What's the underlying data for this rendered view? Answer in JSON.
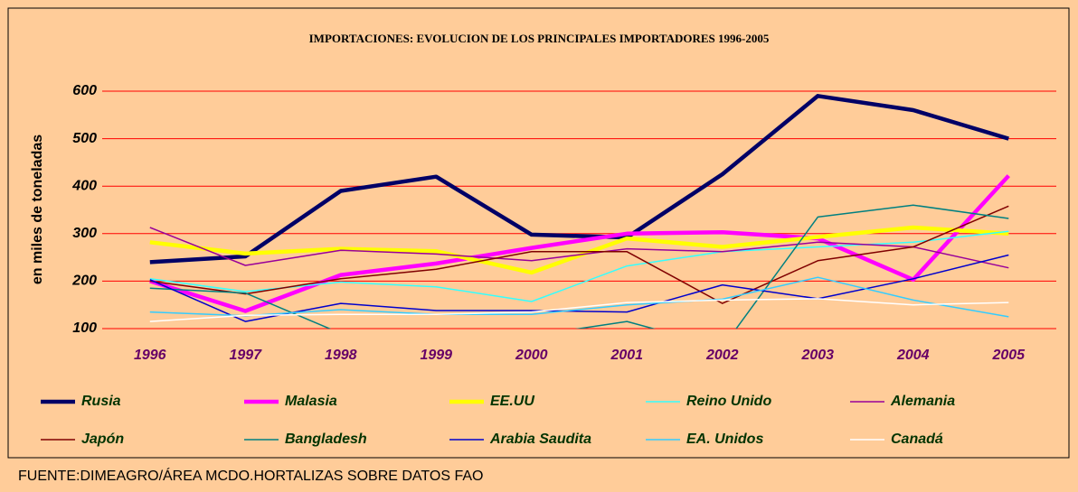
{
  "chart_data": {
    "type": "line",
    "title": "IMPORTACIONES: EVOLUCION DE LOS PRINCIPALES IMPORTADORES 1996-2005",
    "y_label": "en miles de toneladas",
    "categories": [
      "1996",
      "1997",
      "1998",
      "1999",
      "2000",
      "2001",
      "2002",
      "2003",
      "2004",
      "2005"
    ],
    "ylim": [
      100,
      600
    ],
    "yticks": [
      100,
      200,
      300,
      400,
      500,
      600
    ],
    "grid": true,
    "series": [
      {
        "name": "Rusia",
        "color": "#000066",
        "values": [
          240,
          252,
          390,
          420,
          298,
          292,
          425,
          590,
          560,
          500
        ]
      },
      {
        "name": "Malasia",
        "color": "#ff00ff",
        "values": [
          200,
          137,
          213,
          237,
          270,
          300,
          303,
          290,
          203,
          422
        ]
      },
      {
        "name": "EE.UU",
        "color": "#ffff00",
        "values": [
          282,
          258,
          268,
          263,
          218,
          290,
          272,
          293,
          313,
          300
        ]
      },
      {
        "name": "Reino Unido",
        "color": "#33ffff",
        "values": [
          205,
          178,
          198,
          188,
          157,
          232,
          262,
          272,
          282,
          305
        ]
      },
      {
        "name": "Alemania",
        "color": "#990099",
        "values": [
          313,
          233,
          265,
          257,
          243,
          268,
          262,
          282,
          272,
          228
        ]
      },
      {
        "name": "Japón",
        "color": "#800000",
        "values": [
          200,
          173,
          205,
          225,
          262,
          262,
          153,
          243,
          272,
          358
        ]
      },
      {
        "name": "Bangladesh",
        "color": "#008080",
        "values": [
          185,
          175,
          90,
          70,
          85,
          115,
          60,
          335,
          360,
          332
        ]
      },
      {
        "name": "Arabia Saudita",
        "color": "#0000cc",
        "values": [
          203,
          115,
          153,
          138,
          138,
          135,
          192,
          163,
          205,
          255
        ]
      },
      {
        "name": "EA. Unidos",
        "color": "#33ccff",
        "values": [
          135,
          127,
          140,
          130,
          130,
          150,
          162,
          208,
          160,
          125
        ]
      },
      {
        "name": "Canadá",
        "color": "#ffffff",
        "values": [
          115,
          128,
          130,
          130,
          135,
          155,
          160,
          163,
          150,
          155
        ]
      }
    ]
  },
  "source": "FUENTE:DIMEAGRO/ÁREA MCDO.HORTALIZAS SOBRE DATOS FAO"
}
